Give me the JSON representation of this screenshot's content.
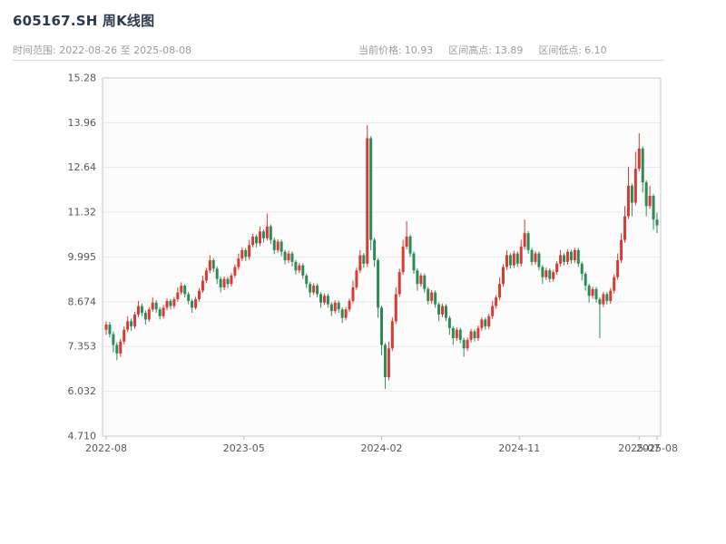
{
  "header": {
    "title": "605167.SH 周K线图",
    "range_text": "时间范围: 2022-08-26 至 2025-08-08",
    "stats": [
      {
        "label": "当前价格:",
        "value": "10.93"
      },
      {
        "label": "区间高点:",
        "value": "13.89"
      },
      {
        "label": "区间低点:",
        "value": "6.10"
      }
    ]
  },
  "chart_data": {
    "type": "candlestick",
    "title": "605167.SH 周K线图",
    "symbol": "605167.SH",
    "interval": "weekly",
    "date_range": {
      "start": "2022-08-26",
      "end": "2025-08-08"
    },
    "current_price": 10.93,
    "range_high": 13.89,
    "range_low": 6.1,
    "up_color": "#d83a34",
    "down_color": "#2e8b57",
    "grid": true,
    "legend": "none",
    "ylim": [
      4.71,
      15.28
    ],
    "y_ticks": [
      {
        "label": "15.28",
        "value": 15.28
      },
      {
        "label": "13.96",
        "value": 13.96
      },
      {
        "label": "12.64",
        "value": 12.64
      },
      {
        "label": "11.32",
        "value": 11.32
      },
      {
        "label": "9.995",
        "value": 9.995
      },
      {
        "label": "8.674",
        "value": 8.674
      },
      {
        "label": "7.353",
        "value": 7.353
      },
      {
        "label": "6.032",
        "value": 6.032
      },
      {
        "label": "4.710",
        "value": 4.71
      }
    ],
    "x_ticks": [
      {
        "label": "2022-08",
        "index": 0
      },
      {
        "label": "2023-05",
        "index": 38.5
      },
      {
        "label": "2024-02",
        "index": 77
      },
      {
        "label": "2024-11",
        "index": 115.5
      },
      {
        "label": "2025-07",
        "index": 149
      },
      {
        "label": "2025-08",
        "index": 154
      }
    ],
    "candles_format": [
      "open",
      "high",
      "low",
      "close"
    ],
    "candles": [
      [
        7.85,
        8.1,
        7.7,
        8.0
      ],
      [
        8.0,
        8.08,
        7.62,
        7.72
      ],
      [
        7.72,
        7.8,
        7.18,
        7.4
      ],
      [
        7.4,
        7.48,
        6.95,
        7.15
      ],
      [
        7.15,
        7.58,
        7.05,
        7.5
      ],
      [
        7.5,
        7.95,
        7.42,
        7.85
      ],
      [
        7.85,
        8.25,
        7.78,
        8.1
      ],
      [
        8.1,
        8.18,
        7.82,
        7.95
      ],
      [
        7.95,
        8.38,
        7.88,
        8.3
      ],
      [
        8.3,
        8.7,
        8.22,
        8.55
      ],
      [
        8.55,
        8.62,
        8.25,
        8.35
      ],
      [
        8.35,
        8.42,
        8.0,
        8.15
      ],
      [
        8.15,
        8.52,
        8.08,
        8.45
      ],
      [
        8.45,
        8.8,
        8.38,
        8.65
      ],
      [
        8.65,
        8.72,
        8.35,
        8.45
      ],
      [
        8.45,
        8.52,
        8.15,
        8.25
      ],
      [
        8.25,
        8.58,
        8.18,
        8.5
      ],
      [
        8.5,
        8.78,
        8.42,
        8.7
      ],
      [
        8.7,
        8.76,
        8.45,
        8.55
      ],
      [
        8.55,
        8.82,
        8.48,
        8.75
      ],
      [
        8.75,
        9.1,
        8.68,
        8.95
      ],
      [
        8.95,
        9.25,
        8.88,
        9.15
      ],
      [
        9.15,
        9.2,
        8.8,
        8.9
      ],
      [
        8.9,
        8.96,
        8.6,
        8.7
      ],
      [
        8.7,
        8.76,
        8.35,
        8.5
      ],
      [
        8.5,
        8.82,
        8.44,
        8.75
      ],
      [
        8.75,
        9.08,
        8.68,
        9.0
      ],
      [
        9.0,
        9.45,
        8.94,
        9.3
      ],
      [
        9.3,
        9.68,
        9.22,
        9.6
      ],
      [
        9.6,
        10.05,
        9.52,
        9.9
      ],
      [
        9.9,
        9.96,
        9.55,
        9.65
      ],
      [
        9.65,
        9.72,
        9.2,
        9.35
      ],
      [
        9.35,
        9.42,
        8.95,
        9.1
      ],
      [
        9.1,
        9.42,
        9.02,
        9.35
      ],
      [
        9.35,
        9.41,
        9.08,
        9.2
      ],
      [
        9.2,
        9.52,
        9.12,
        9.45
      ],
      [
        9.45,
        9.78,
        9.38,
        9.7
      ],
      [
        9.7,
        10.1,
        9.62,
        9.95
      ],
      [
        9.95,
        10.28,
        9.88,
        10.2
      ],
      [
        10.2,
        10.26,
        9.88,
        10.0
      ],
      [
        10.0,
        10.5,
        9.92,
        10.35
      ],
      [
        10.35,
        10.68,
        10.28,
        10.6
      ],
      [
        10.6,
        10.66,
        10.28,
        10.4
      ],
      [
        10.4,
        10.9,
        10.32,
        10.75
      ],
      [
        10.75,
        10.81,
        10.42,
        10.55
      ],
      [
        10.55,
        11.28,
        10.48,
        10.9
      ],
      [
        10.9,
        10.96,
        10.38,
        10.5
      ],
      [
        10.5,
        10.56,
        10.08,
        10.2
      ],
      [
        10.2,
        10.52,
        10.12,
        10.45
      ],
      [
        10.45,
        10.51,
        10.02,
        10.15
      ],
      [
        10.15,
        10.21,
        9.78,
        9.9
      ],
      [
        9.9,
        10.18,
        9.82,
        10.1
      ],
      [
        10.1,
        10.16,
        9.72,
        9.85
      ],
      [
        9.85,
        9.91,
        9.48,
        9.6
      ],
      [
        9.6,
        9.82,
        9.52,
        9.75
      ],
      [
        9.75,
        9.81,
        9.35,
        9.45
      ],
      [
        9.45,
        9.51,
        9.08,
        9.2
      ],
      [
        9.2,
        9.26,
        8.8,
        8.95
      ],
      [
        8.95,
        9.22,
        8.88,
        9.15
      ],
      [
        9.15,
        9.21,
        8.8,
        8.9
      ],
      [
        8.9,
        8.96,
        8.5,
        8.65
      ],
      [
        8.65,
        8.92,
        8.58,
        8.85
      ],
      [
        8.85,
        8.91,
        8.5,
        8.6
      ],
      [
        8.6,
        8.66,
        8.25,
        8.4
      ],
      [
        8.4,
        8.72,
        8.33,
        8.65
      ],
      [
        8.65,
        8.71,
        8.35,
        8.45
      ],
      [
        8.45,
        8.51,
        8.05,
        8.2
      ],
      [
        8.2,
        8.52,
        8.13,
        8.45
      ],
      [
        8.45,
        8.77,
        8.38,
        8.7
      ],
      [
        8.7,
        9.3,
        8.63,
        9.1
      ],
      [
        9.1,
        9.68,
        9.03,
        9.6
      ],
      [
        9.6,
        10.2,
        9.52,
        10.05
      ],
      [
        10.05,
        10.11,
        9.68,
        9.8
      ],
      [
        9.8,
        13.89,
        9.7,
        13.5
      ],
      [
        13.5,
        13.56,
        10.2,
        10.5
      ],
      [
        10.5,
        10.56,
        9.7,
        9.9
      ],
      [
        9.9,
        9.96,
        8.2,
        8.5
      ],
      [
        8.5,
        8.56,
        7.1,
        7.4
      ],
      [
        7.4,
        7.46,
        6.1,
        6.45
      ],
      [
        6.45,
        7.5,
        6.35,
        7.3
      ],
      [
        7.3,
        8.22,
        7.22,
        8.1
      ],
      [
        8.1,
        9.1,
        8.02,
        8.9
      ],
      [
        8.9,
        9.65,
        8.82,
        9.55
      ],
      [
        9.55,
        10.5,
        9.47,
        10.3
      ],
      [
        10.3,
        11.05,
        10.22,
        10.6
      ],
      [
        10.6,
        10.66,
        10.0,
        10.1
      ],
      [
        10.1,
        10.16,
        9.5,
        9.6
      ],
      [
        9.6,
        9.66,
        9.0,
        9.2
      ],
      [
        9.2,
        9.52,
        9.12,
        9.45
      ],
      [
        9.45,
        9.51,
        8.95,
        9.05
      ],
      [
        9.05,
        9.11,
        8.6,
        8.7
      ],
      [
        8.7,
        9.02,
        8.62,
        8.95
      ],
      [
        8.95,
        9.01,
        8.5,
        8.6
      ],
      [
        8.6,
        8.66,
        8.1,
        8.3
      ],
      [
        8.3,
        8.62,
        8.22,
        8.55
      ],
      [
        8.55,
        8.61,
        8.1,
        8.2
      ],
      [
        8.2,
        8.26,
        7.7,
        7.9
      ],
      [
        7.9,
        7.96,
        7.4,
        7.6
      ],
      [
        7.6,
        7.92,
        7.52,
        7.85
      ],
      [
        7.85,
        7.91,
        7.45,
        7.55
      ],
      [
        7.55,
        7.61,
        7.05,
        7.3
      ],
      [
        7.3,
        7.62,
        7.22,
        7.55
      ],
      [
        7.55,
        7.87,
        7.47,
        7.8
      ],
      [
        7.8,
        7.86,
        7.5,
        7.6
      ],
      [
        7.6,
        7.97,
        7.52,
        7.9
      ],
      [
        7.9,
        8.22,
        7.82,
        8.15
      ],
      [
        8.15,
        8.21,
        7.85,
        7.95
      ],
      [
        7.95,
        8.32,
        7.87,
        8.25
      ],
      [
        8.25,
        8.7,
        8.17,
        8.55
      ],
      [
        8.55,
        8.87,
        8.47,
        8.8
      ],
      [
        8.8,
        9.4,
        8.72,
        9.2
      ],
      [
        9.2,
        9.78,
        9.12,
        9.7
      ],
      [
        9.7,
        10.2,
        9.62,
        10.05
      ],
      [
        10.05,
        10.11,
        9.65,
        9.75
      ],
      [
        9.75,
        10.18,
        9.67,
        10.1
      ],
      [
        10.1,
        10.16,
        9.7,
        9.8
      ],
      [
        9.8,
        10.5,
        9.72,
        10.3
      ],
      [
        10.3,
        11.1,
        10.22,
        10.7
      ],
      [
        10.7,
        10.76,
        10.1,
        10.2
      ],
      [
        10.2,
        10.26,
        9.75,
        9.85
      ],
      [
        9.85,
        10.17,
        9.77,
        10.1
      ],
      [
        10.1,
        10.16,
        9.6,
        9.7
      ],
      [
        9.7,
        9.76,
        9.2,
        9.4
      ],
      [
        9.4,
        9.68,
        9.32,
        9.6
      ],
      [
        9.6,
        9.66,
        9.25,
        9.35
      ],
      [
        9.35,
        9.62,
        9.27,
        9.55
      ],
      [
        9.55,
        9.87,
        9.47,
        9.8
      ],
      [
        9.8,
        10.2,
        9.72,
        10.05
      ],
      [
        10.05,
        10.11,
        9.75,
        9.85
      ],
      [
        9.85,
        10.22,
        9.77,
        10.15
      ],
      [
        10.15,
        10.21,
        9.8,
        9.9
      ],
      [
        9.9,
        10.27,
        9.82,
        10.2
      ],
      [
        10.2,
        10.26,
        9.7,
        9.8
      ],
      [
        9.8,
        9.86,
        9.3,
        9.5
      ],
      [
        9.5,
        9.56,
        9.0,
        9.15
      ],
      [
        9.15,
        9.21,
        8.65,
        8.85
      ],
      [
        8.85,
        9.12,
        8.77,
        9.05
      ],
      [
        9.05,
        9.11,
        8.65,
        8.75
      ],
      [
        8.75,
        8.81,
        7.6,
        8.6
      ],
      [
        8.6,
        8.97,
        8.52,
        8.9
      ],
      [
        8.9,
        8.96,
        8.6,
        8.7
      ],
      [
        8.7,
        9.08,
        8.62,
        9.0
      ],
      [
        9.0,
        9.48,
        8.92,
        9.4
      ],
      [
        9.4,
        10.1,
        9.32,
        9.9
      ],
      [
        9.9,
        10.7,
        9.82,
        10.5
      ],
      [
        10.5,
        11.5,
        10.42,
        11.2
      ],
      [
        11.2,
        12.65,
        11.12,
        12.1
      ],
      [
        12.1,
        12.16,
        11.2,
        11.6
      ],
      [
        11.6,
        13.1,
        11.52,
        12.6
      ],
      [
        12.6,
        13.65,
        12.52,
        13.2
      ],
      [
        13.2,
        13.26,
        11.9,
        12.2
      ],
      [
        12.2,
        12.26,
        11.2,
        11.5
      ],
      [
        11.5,
        12.1,
        11.42,
        11.8
      ],
      [
        11.8,
        11.86,
        10.8,
        11.1
      ],
      [
        11.1,
        11.3,
        10.7,
        10.93
      ]
    ]
  }
}
